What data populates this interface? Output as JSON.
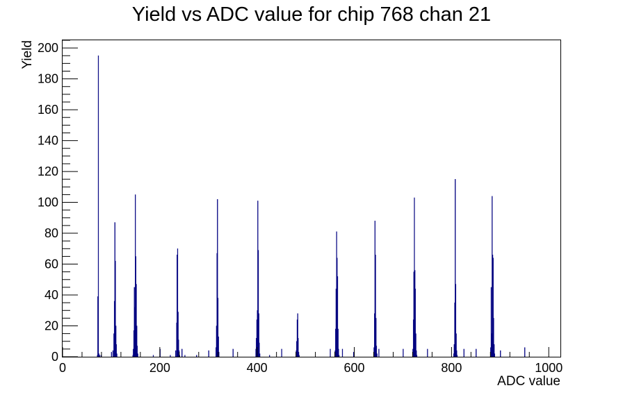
{
  "chart_data": {
    "type": "histogram",
    "title": "Yield vs ADC value for chip 768 chan 21",
    "xlabel": "ADC value",
    "ylabel": "Yield",
    "xlim": [
      0,
      1024
    ],
    "ylim": [
      0,
      205
    ],
    "x_ticks": [
      0,
      200,
      400,
      600,
      800,
      1000
    ],
    "y_ticks": [
      0,
      20,
      40,
      60,
      80,
      100,
      120,
      140,
      160,
      180,
      200
    ],
    "grid": false,
    "legend": "none",
    "bin_width": 1,
    "color": "#000080",
    "bins": [
      {
        "x": 71,
        "y": 1
      },
      {
        "x": 72,
        "y": 39
      },
      {
        "x": 73,
        "y": 195
      },
      {
        "x": 74,
        "y": 2
      },
      {
        "x": 76,
        "y": 1
      },
      {
        "x": 79,
        "y": 1
      },
      {
        "x": 100,
        "y": 3
      },
      {
        "x": 103,
        "y": 4
      },
      {
        "x": 105,
        "y": 15
      },
      {
        "x": 106,
        "y": 36
      },
      {
        "x": 107,
        "y": 87
      },
      {
        "x": 108,
        "y": 62
      },
      {
        "x": 109,
        "y": 20
      },
      {
        "x": 110,
        "y": 8
      },
      {
        "x": 111,
        "y": 2
      },
      {
        "x": 144,
        "y": 1
      },
      {
        "x": 145,
        "y": 5
      },
      {
        "x": 146,
        "y": 17
      },
      {
        "x": 147,
        "y": 45
      },
      {
        "x": 148,
        "y": 32
      },
      {
        "x": 149,
        "y": 105
      },
      {
        "x": 150,
        "y": 65
      },
      {
        "x": 151,
        "y": 47
      },
      {
        "x": 152,
        "y": 20
      },
      {
        "x": 153,
        "y": 7
      },
      {
        "x": 154,
        "y": 2
      },
      {
        "x": 186,
        "y": 1
      },
      {
        "x": 200,
        "y": 5
      },
      {
        "x": 221,
        "y": 1
      },
      {
        "x": 232,
        "y": 4
      },
      {
        "x": 234,
        "y": 22
      },
      {
        "x": 235,
        "y": 66
      },
      {
        "x": 236,
        "y": 70
      },
      {
        "x": 237,
        "y": 29
      },
      {
        "x": 238,
        "y": 11
      },
      {
        "x": 239,
        "y": 4
      },
      {
        "x": 240,
        "y": 1
      },
      {
        "x": 245,
        "y": 5
      },
      {
        "x": 251,
        "y": 1
      },
      {
        "x": 275,
        "y": 1
      },
      {
        "x": 300,
        "y": 4
      },
      {
        "x": 315,
        "y": 6
      },
      {
        "x": 316,
        "y": 20
      },
      {
        "x": 317,
        "y": 67
      },
      {
        "x": 318,
        "y": 102
      },
      {
        "x": 319,
        "y": 38
      },
      {
        "x": 320,
        "y": 13
      },
      {
        "x": 321,
        "y": 3
      },
      {
        "x": 350,
        "y": 5
      },
      {
        "x": 397,
        "y": 5
      },
      {
        "x": 398,
        "y": 12
      },
      {
        "x": 399,
        "y": 24
      },
      {
        "x": 400,
        "y": 30
      },
      {
        "x": 401,
        "y": 101
      },
      {
        "x": 402,
        "y": 69
      },
      {
        "x": 403,
        "y": 28
      },
      {
        "x": 404,
        "y": 9
      },
      {
        "x": 405,
        "y": 2
      },
      {
        "x": 425,
        "y": 1
      },
      {
        "x": 450,
        "y": 5
      },
      {
        "x": 480,
        "y": 4
      },
      {
        "x": 481,
        "y": 10
      },
      {
        "x": 482,
        "y": 24
      },
      {
        "x": 483,
        "y": 28
      },
      {
        "x": 484,
        "y": 12
      },
      {
        "x": 485,
        "y": 3
      },
      {
        "x": 486,
        "y": 1
      },
      {
        "x": 550,
        "y": 5
      },
      {
        "x": 560,
        "y": 4
      },
      {
        "x": 561,
        "y": 18
      },
      {
        "x": 562,
        "y": 44
      },
      {
        "x": 563,
        "y": 81
      },
      {
        "x": 564,
        "y": 64
      },
      {
        "x": 565,
        "y": 52
      },
      {
        "x": 566,
        "y": 18
      },
      {
        "x": 567,
        "y": 5
      },
      {
        "x": 568,
        "y": 1
      },
      {
        "x": 575,
        "y": 5
      },
      {
        "x": 598,
        "y": 3
      },
      {
        "x": 640,
        "y": 6
      },
      {
        "x": 641,
        "y": 28
      },
      {
        "x": 642,
        "y": 88
      },
      {
        "x": 643,
        "y": 66
      },
      {
        "x": 644,
        "y": 25
      },
      {
        "x": 645,
        "y": 7
      },
      {
        "x": 646,
        "y": 2
      },
      {
        "x": 650,
        "y": 5
      },
      {
        "x": 700,
        "y": 5
      },
      {
        "x": 720,
        "y": 5
      },
      {
        "x": 721,
        "y": 24
      },
      {
        "x": 722,
        "y": 55
      },
      {
        "x": 723,
        "y": 103
      },
      {
        "x": 724,
        "y": 56
      },
      {
        "x": 725,
        "y": 44
      },
      {
        "x": 726,
        "y": 15
      },
      {
        "x": 727,
        "y": 4
      },
      {
        "x": 728,
        "y": 1
      },
      {
        "x": 750,
        "y": 5
      },
      {
        "x": 804,
        "y": 2
      },
      {
        "x": 805,
        "y": 8
      },
      {
        "x": 806,
        "y": 35
      },
      {
        "x": 807,
        "y": 115
      },
      {
        "x": 808,
        "y": 47
      },
      {
        "x": 809,
        "y": 15
      },
      {
        "x": 810,
        "y": 4
      },
      {
        "x": 811,
        "y": 1
      },
      {
        "x": 825,
        "y": 5
      },
      {
        "x": 850,
        "y": 5
      },
      {
        "x": 880,
        "y": 6
      },
      {
        "x": 881,
        "y": 45
      },
      {
        "x": 882,
        "y": 15
      },
      {
        "x": 883,
        "y": 104
      },
      {
        "x": 884,
        "y": 66
      },
      {
        "x": 885,
        "y": 64
      },
      {
        "x": 886,
        "y": 25
      },
      {
        "x": 887,
        "y": 8
      },
      {
        "x": 888,
        "y": 2
      },
      {
        "x": 900,
        "y": 4
      },
      {
        "x": 950,
        "y": 6
      }
    ]
  }
}
